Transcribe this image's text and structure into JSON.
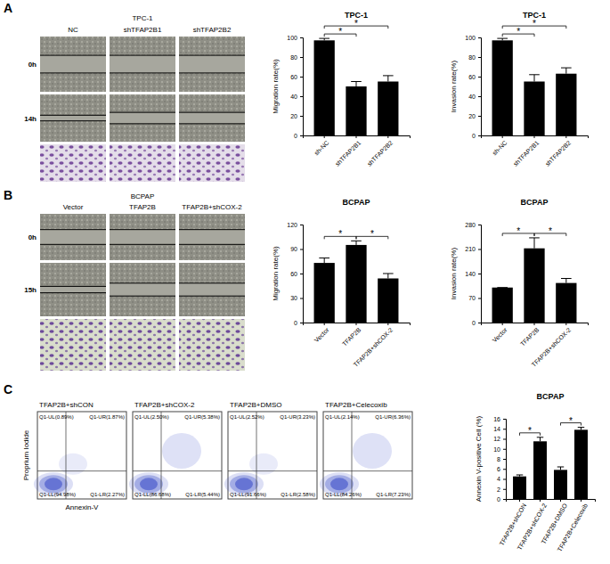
{
  "panels": [
    {
      "label": "A",
      "header": "TPC-1",
      "columns": [
        "NC",
        "shTFAP2B1",
        "shTFAP2B2"
      ],
      "rows": [
        "0h",
        "14h"
      ]
    },
    {
      "label": "B",
      "header": "BCPAP",
      "columns": [
        "Vector",
        "TFAP2B",
        "TFAP2B+shCOX-2"
      ],
      "rows": [
        "0h",
        "15h"
      ]
    },
    {
      "label": "C"
    }
  ],
  "flow_cytometry": {
    "y_label": "Proprium Iodide",
    "x_label": "Annexin-V",
    "plots": [
      {
        "title": "TFAP2B+shCON",
        "quadrants": [
          "Q1-UL(0.89%)",
          "Q1-UR(1.87%)",
          "Q1-LL(94.98%)",
          "Q1-LR(2.27%)"
        ]
      },
      {
        "title": "TFAP2B+shCOX-2",
        "quadrants": [
          "Q1-UL(2.50%)",
          "Q1-UR(5.38%)",
          "Q1-LL(86.68%)",
          "Q1-LR(5.44%)"
        ]
      },
      {
        "title": "TFAP2B+DMSO",
        "quadrants": [
          "Q1-UL(2.52%)",
          "Q1-UR(3.23%)",
          "Q1-LL(91.66%)",
          "Q1-LR(2.58%)"
        ]
      },
      {
        "title": "TFAP2B+Celecoxib",
        "quadrants": [
          "Q1-UL(2.14%)",
          "Q1-UR(6.36%)",
          "Q1-LL(84.26%)",
          "Q1-LR(7.23%)"
        ]
      }
    ]
  },
  "chart_data": [
    {
      "type": "bar",
      "title": "TPC-1",
      "y_label": "Migration rate(%)",
      "categories": [
        "sh-NC",
        "shTFAP2B1",
        "shTFAP2B2"
      ],
      "values": [
        97,
        50,
        55
      ],
      "errors": [
        2,
        5,
        6
      ],
      "color": "#000000",
      "ylim": [
        0,
        100
      ],
      "yticks": [
        0,
        20,
        40,
        60,
        80,
        100
      ],
      "annotations": [
        {
          "text": "*",
          "between": [
            "sh-NC",
            "shTFAP2B1"
          ]
        },
        {
          "text": "*",
          "between": [
            "sh-NC",
            "shTFAP2B2"
          ]
        }
      ]
    },
    {
      "type": "bar",
      "title": "TPC-1",
      "y_label": "Invasion rate(%)",
      "categories": [
        "sh-NC",
        "shTFAP2B1",
        "shTFAP2B2"
      ],
      "values": [
        97,
        55,
        63
      ],
      "errors": [
        2,
        7,
        6
      ],
      "color": "#000000",
      "ylim": [
        0,
        100
      ],
      "yticks": [
        0,
        20,
        40,
        60,
        80,
        100
      ],
      "annotations": [
        {
          "text": "*",
          "between": [
            "sh-NC",
            "shTFAP2B1"
          ]
        },
        {
          "text": "*",
          "between": [
            "sh-NC",
            "shTFAP2B2"
          ]
        }
      ]
    },
    {
      "type": "bar",
      "title": "BCPAP",
      "y_label": "Migration rate(%)",
      "categories": [
        "Vector",
        "TFAP2B",
        "TFAP2B+shCOX-2"
      ],
      "values": [
        73,
        95,
        54
      ],
      "errors": [
        6,
        5,
        6
      ],
      "color": "#000000",
      "ylim": [
        0,
        120
      ],
      "yticks": [
        0,
        30,
        60,
        90,
        120
      ],
      "annotations": [
        {
          "text": "*",
          "between": [
            "Vector",
            "TFAP2B"
          ]
        },
        {
          "text": "*",
          "between": [
            "TFAP2B",
            "TFAP2B+shCOX-2"
          ]
        }
      ]
    },
    {
      "type": "bar",
      "title": "BCPAP",
      "y_label": "Invasion rate(%)",
      "categories": [
        "Vector",
        "TFAP2B",
        "TFAP2B+shCOX-2"
      ],
      "values": [
        100,
        212,
        113
      ],
      "errors": [
        0,
        30,
        13
      ],
      "color": "#000000",
      "ylim": [
        0,
        280
      ],
      "yticks": [
        0,
        70,
        140,
        210,
        280
      ],
      "annotations": [
        {
          "text": "*",
          "between": [
            "Vector",
            "TFAP2B"
          ]
        },
        {
          "text": "*",
          "between": [
            "TFAP2B",
            "TFAP2B+shCOX-2"
          ]
        }
      ]
    },
    {
      "type": "bar",
      "title": "BCPAP",
      "y_label": "Annexin V-positive Cell (%)",
      "categories": [
        "TFAP2B+shCON",
        "TFAP2B+shCOX-2",
        "TFAP2B+DMSO",
        "TFAP2B+Celecoxib"
      ],
      "values": [
        4.5,
        11.5,
        5.8,
        13.8
      ],
      "errors": [
        0.3,
        0.8,
        0.6,
        0.5
      ],
      "color": "#000000",
      "ylim": [
        0,
        16
      ],
      "yticks": [
        0,
        2,
        4,
        6,
        8,
        10,
        12,
        14,
        16
      ],
      "annotations": [
        {
          "text": "*",
          "between": [
            "TFAP2B+shCON",
            "TFAP2B+shCOX-2"
          ]
        },
        {
          "text": "*",
          "between": [
            "TFAP2B+DMSO",
            "TFAP2B+Celecoxib"
          ]
        }
      ]
    }
  ]
}
